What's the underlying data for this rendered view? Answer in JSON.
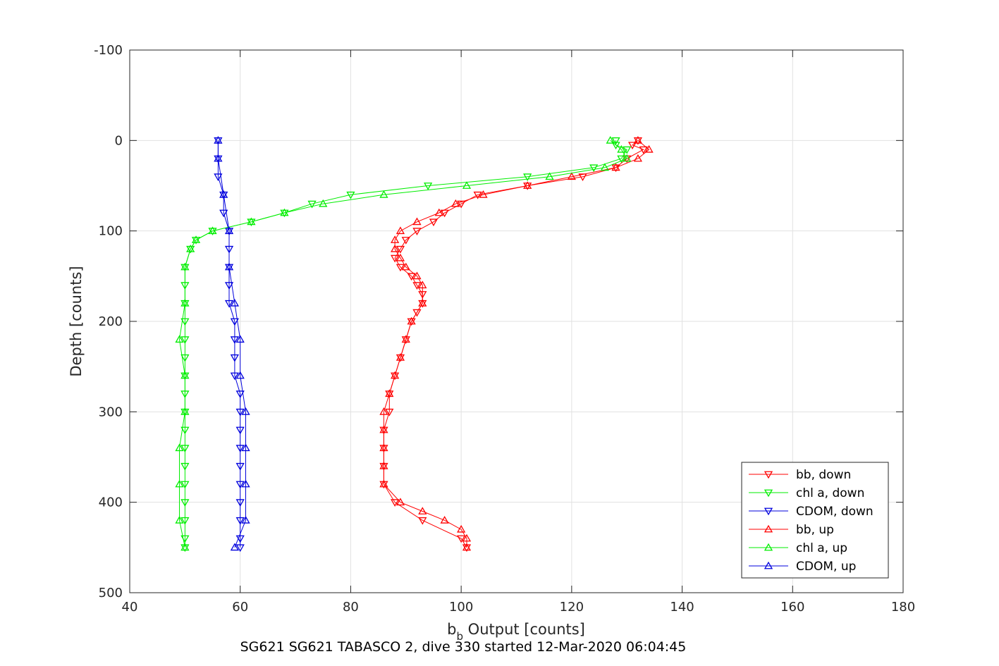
{
  "chart_data": {
    "type": "line",
    "title": "",
    "caption": "SG621 SG621 TABASCO 2, dive 330 started 12-Mar-2020 06:04:45",
    "xlabel": {
      "main": "b",
      "subscript": "b",
      "rest": " Output [counts]"
    },
    "ylabel": "Depth [counts]",
    "xlim": [
      40,
      180
    ],
    "ylim": [
      -100,
      500
    ],
    "y_reversed": true,
    "grid": true,
    "xticks": [
      "40",
      "60",
      "80",
      "100",
      "120",
      "140",
      "160",
      "180"
    ],
    "yticks": [
      "-100",
      "0",
      "100",
      "200",
      "300",
      "400",
      "500"
    ],
    "legend_position": "bottom-right",
    "series": [
      {
        "name": "bb, down",
        "color": "#ff0000",
        "marker": "triangle-down",
        "depth": [
          0,
          5,
          10,
          20,
          30,
          40,
          50,
          60,
          70,
          80,
          90,
          100,
          110,
          120,
          130,
          140,
          150,
          160,
          170,
          180,
          190,
          200,
          220,
          240,
          260,
          280,
          300,
          320,
          340,
          360,
          380,
          400,
          420,
          440,
          450
        ],
        "values": [
          132,
          131,
          133,
          130,
          128,
          122,
          112,
          103,
          100,
          97,
          95,
          92,
          90,
          89,
          88,
          89,
          91,
          92,
          93,
          93,
          92,
          91,
          90,
          89,
          88,
          87,
          87,
          86,
          86,
          86,
          86,
          88,
          93,
          100,
          101
        ]
      },
      {
        "name": "chl a, down",
        "color": "#00ee00",
        "marker": "triangle-down",
        "depth": [
          0,
          5,
          10,
          20,
          30,
          40,
          50,
          60,
          70,
          80,
          90,
          100,
          110,
          120,
          140,
          160,
          180,
          200,
          220,
          240,
          260,
          280,
          300,
          320,
          340,
          360,
          380,
          400,
          420,
          440,
          450
        ],
        "values": [
          128,
          128,
          130,
          129,
          124,
          112,
          94,
          80,
          73,
          68,
          62,
          55,
          52,
          51,
          50,
          50,
          50,
          50,
          50,
          50,
          50,
          50,
          50,
          50,
          50,
          50,
          50,
          50,
          50,
          50,
          50
        ]
      },
      {
        "name": "CDOM, down",
        "color": "#0000dd",
        "marker": "triangle-down",
        "depth": [
          0,
          20,
          40,
          60,
          80,
          100,
          120,
          140,
          160,
          180,
          200,
          220,
          240,
          260,
          280,
          300,
          320,
          340,
          360,
          380,
          400,
          420,
          440,
          450
        ],
        "values": [
          56,
          56,
          56,
          57,
          57,
          58,
          58,
          58,
          58,
          58,
          59,
          59,
          59,
          59,
          60,
          60,
          60,
          60,
          60,
          60,
          60,
          60,
          60,
          60
        ]
      },
      {
        "name": "bb, up",
        "color": "#ff0000",
        "marker": "triangle-up",
        "depth": [
          450,
          440,
          430,
          420,
          410,
          400,
          380,
          360,
          340,
          320,
          300,
          280,
          260,
          240,
          220,
          200,
          180,
          160,
          150,
          140,
          130,
          120,
          110,
          100,
          90,
          80,
          70,
          60,
          50,
          40,
          30,
          20,
          10,
          0
        ],
        "values": [
          101,
          101,
          100,
          97,
          93,
          89,
          86,
          86,
          86,
          86,
          86,
          87,
          88,
          89,
          90,
          91,
          93,
          93,
          92,
          90,
          89,
          88,
          88,
          89,
          92,
          96,
          99,
          104,
          112,
          120,
          128,
          132,
          134,
          132
        ]
      },
      {
        "name": "chl a, up",
        "color": "#00ee00",
        "marker": "triangle-up",
        "depth": [
          450,
          420,
          380,
          340,
          300,
          260,
          220,
          180,
          140,
          120,
          110,
          100,
          90,
          80,
          70,
          60,
          50,
          40,
          30,
          20,
          10,
          0
        ],
        "values": [
          50,
          49,
          49,
          49,
          50,
          50,
          49,
          50,
          50,
          51,
          52,
          55,
          62,
          68,
          75,
          86,
          101,
          116,
          126,
          130,
          129,
          127
        ]
      },
      {
        "name": "CDOM, up",
        "color": "#0000dd",
        "marker": "triangle-up",
        "depth": [
          450,
          420,
          380,
          340,
          300,
          260,
          220,
          180,
          140,
          100,
          60,
          20,
          0
        ],
        "values": [
          59,
          61,
          61,
          61,
          61,
          60,
          60,
          59,
          58,
          58,
          57,
          56,
          56
        ]
      }
    ]
  }
}
